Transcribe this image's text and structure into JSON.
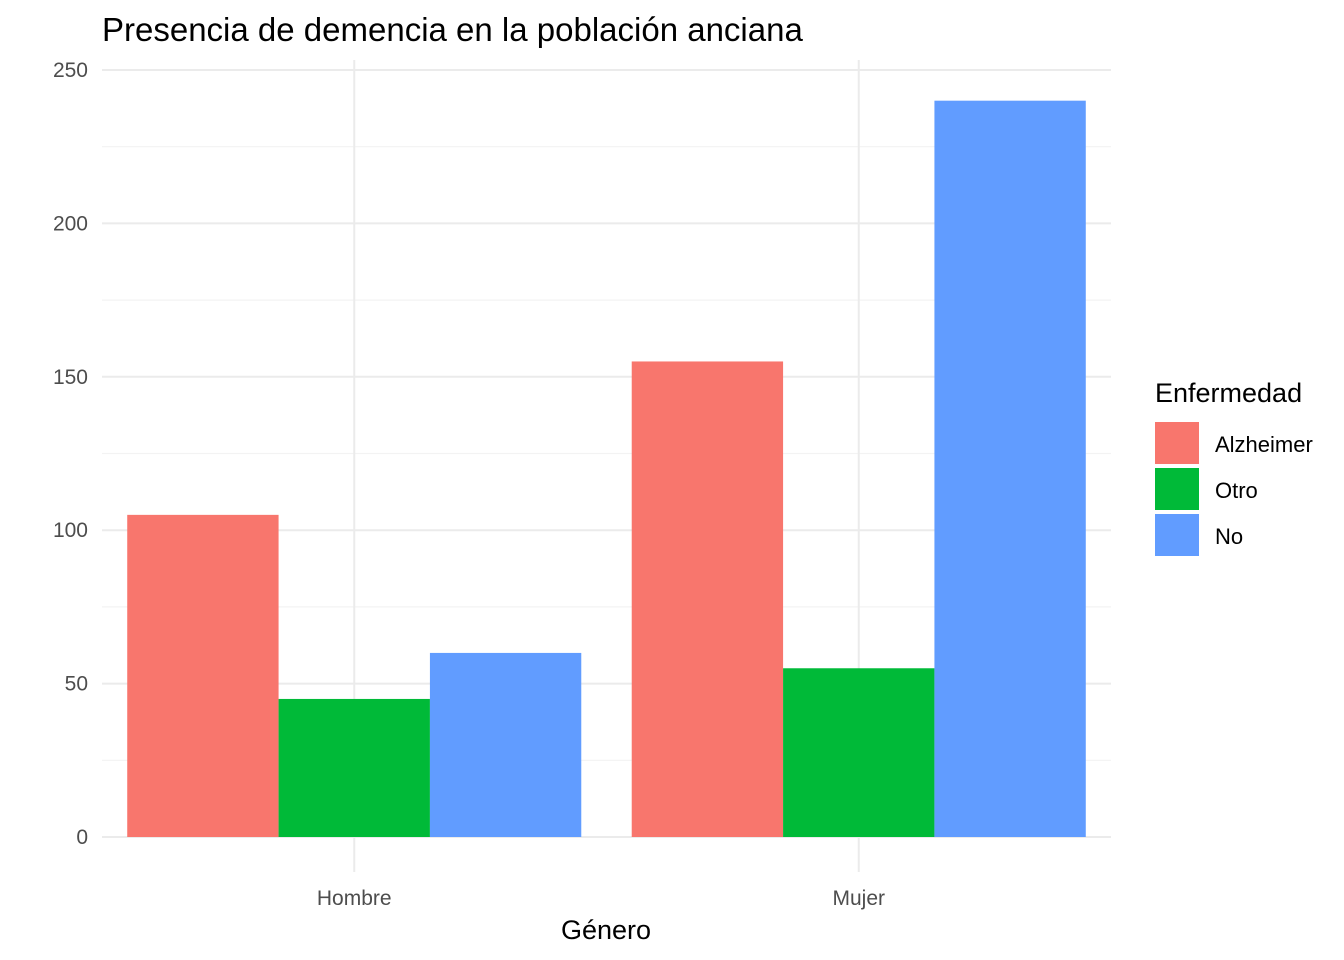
{
  "chart_data": {
    "type": "bar",
    "title": "Presencia de demencia en la población anciana",
    "xlabel": "Género",
    "ylabel": "",
    "categories": [
      "Hombre",
      "Mujer"
    ],
    "ylim": [
      0,
      250
    ],
    "yticks": [
      0,
      50,
      100,
      150,
      200,
      250
    ],
    "grid": true,
    "legend": {
      "title": "Enfermedad",
      "placement": "right"
    },
    "series": [
      {
        "name": "Alzheimer",
        "color": "#F8766D",
        "values": [
          105,
          155
        ]
      },
      {
        "name": "Otro",
        "color": "#00BA38",
        "values": [
          45,
          55
        ]
      },
      {
        "name": "No",
        "color": "#619CFF",
        "values": [
          60,
          240
        ]
      }
    ]
  }
}
